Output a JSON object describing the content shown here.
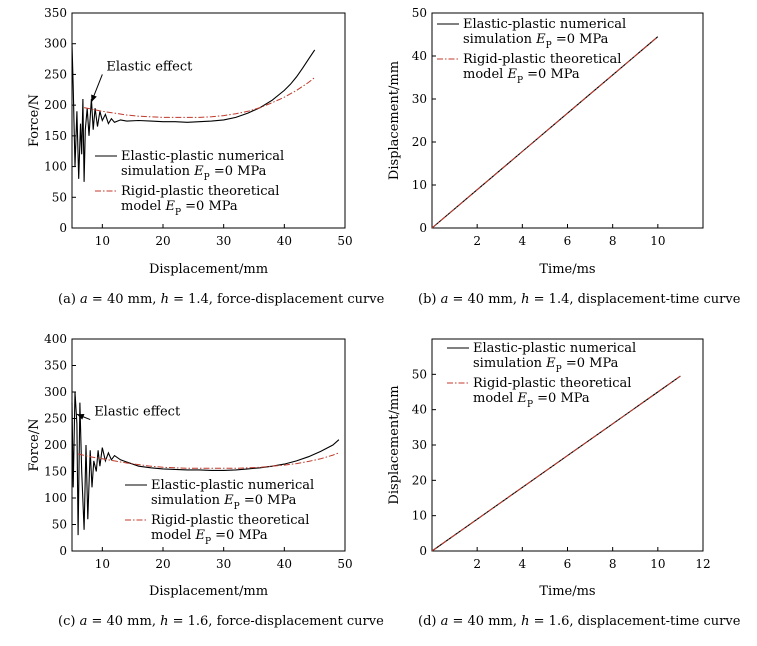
{
  "chart_data": [
    {
      "type": "line",
      "panel": "a",
      "caption_parts": [
        "(a) ",
        "a",
        " = 40 mm, ",
        "h",
        " = 1.4, force-displacement curve"
      ],
      "xlabel": "Displacement/mm",
      "ylabel": "Force/N",
      "xlim": [
        5,
        50
      ],
      "ylim": [
        0,
        350
      ],
      "xticks": [
        10,
        20,
        30,
        40,
        50
      ],
      "yticks": [
        0,
        50,
        100,
        150,
        200,
        250,
        300,
        350
      ],
      "annotation": {
        "text": "Elastic effect",
        "anchor": [
          8.2,
          205
        ],
        "text_at": [
          10,
          250
        ]
      },
      "legend": [
        {
          "line1": "Elastic-plastic numerical",
          "line2": "simulation ",
          "sym": "E",
          "sub": "P",
          "rest": " =0 MPa",
          "style": "solid"
        },
        {
          "line1": "Rigid-plastic theoretical",
          "line2": "model ",
          "sym": "E",
          "sub": "P",
          "rest": " =0 MPa",
          "style": "dashdot"
        }
      ],
      "series": [
        {
          "style": "solid",
          "color": "#000000",
          "x": [
            5,
            5.2,
            5.5,
            5.8,
            6.1,
            6.4,
            6.6,
            6.8,
            7.0,
            7.2,
            7.5,
            7.8,
            8.0,
            8.2,
            8.5,
            8.8,
            9.2,
            9.6,
            10.0,
            10.5,
            11,
            11.5,
            12,
            13,
            14,
            16,
            18,
            20,
            22,
            24,
            26,
            28,
            30,
            32,
            34,
            36,
            38,
            40,
            41,
            42,
            43,
            44,
            45
          ],
          "y": [
            300,
            230,
            100,
            190,
            80,
            170,
            120,
            210,
            75,
            160,
            195,
            150,
            180,
            210,
            160,
            195,
            165,
            190,
            175,
            185,
            170,
            178,
            172,
            176,
            174,
            175,
            174,
            173,
            173,
            172,
            173,
            174,
            176,
            180,
            187,
            196,
            208,
            224,
            234,
            246,
            260,
            275,
            290
          ]
        },
        {
          "style": "dashdot",
          "color": "#c0392b",
          "x": [
            7,
            8,
            10,
            12,
            14,
            16,
            18,
            20,
            22,
            24,
            26,
            28,
            30,
            32,
            34,
            36,
            38,
            40,
            42,
            44,
            45
          ],
          "y": [
            196,
            194,
            190,
            187,
            184,
            182,
            181,
            180,
            180,
            180,
            180,
            181,
            183,
            186,
            190,
            196,
            204,
            213,
            224,
            237,
            245
          ]
        }
      ]
    },
    {
      "type": "line",
      "panel": "b",
      "caption_parts": [
        "(b) ",
        "a",
        " = 40 mm, ",
        "h",
        " = 1.4, displacement-time curve"
      ],
      "xlabel": "Time/ms",
      "ylabel": "Displacement/mm",
      "xlim": [
        0,
        12
      ],
      "ylim": [
        0,
        50
      ],
      "xticks": [
        2,
        4,
        6,
        8,
        10
      ],
      "yticks": [
        0,
        10,
        20,
        30,
        40,
        50
      ],
      "legend": [
        {
          "line1": "Elastic-plastic numerical",
          "line2": "simulation ",
          "sym": "E",
          "sub": "P",
          "rest": " =0 MPa",
          "style": "solid"
        },
        {
          "line1": "Rigid-plastic theoretical",
          "line2": "model ",
          "sym": "E",
          "sub": "P",
          "rest": " =0 MPa",
          "style": "dashdot"
        }
      ],
      "series": [
        {
          "style": "solid",
          "color": "#000000",
          "x": [
            0,
            2,
            4,
            6,
            8,
            10
          ],
          "y": [
            0,
            8.9,
            17.8,
            26.7,
            35.6,
            44.5
          ]
        },
        {
          "style": "dashdot",
          "color": "#c0392b",
          "x": [
            0,
            2,
            4,
            6,
            8,
            10
          ],
          "y": [
            0,
            8.9,
            17.8,
            26.7,
            35.6,
            44.5
          ]
        }
      ]
    },
    {
      "type": "line",
      "panel": "c",
      "caption_parts": [
        "(c) ",
        "a",
        " = 40 mm, ",
        "h",
        " = 1.6, force-displacement curve"
      ],
      "xlabel": "Displacement/mm",
      "ylabel": "Force/N",
      "xlim": [
        5,
        50
      ],
      "ylim": [
        0,
        400
      ],
      "xticks": [
        10,
        20,
        30,
        40,
        50
      ],
      "yticks": [
        0,
        50,
        100,
        150,
        200,
        250,
        300,
        350,
        400
      ],
      "annotation": {
        "text": "Elastic effect",
        "anchor": [
          5.8,
          258
        ],
        "text_at": [
          8,
          248
        ]
      },
      "legend": [
        {
          "line1": "Elastic-plastic numerical",
          "line2": "simulation ",
          "sym": "E",
          "sub": "P",
          "rest": " =0 MPa",
          "style": "solid"
        },
        {
          "line1": "Rigid-plastic theoretical",
          "line2": "model ",
          "sym": "E",
          "sub": "P",
          "rest": " =0 MPa",
          "style": "dashdot"
        }
      ],
      "series": [
        {
          "style": "solid",
          "color": "#000000",
          "x": [
            5,
            5.2,
            5.5,
            5.8,
            6.0,
            6.3,
            6.6,
            7.0,
            7.3,
            7.6,
            8.0,
            8.3,
            8.6,
            9.0,
            9.3,
            9.6,
            10.0,
            10.5,
            11,
            11.5,
            12,
            13,
            14,
            16,
            18,
            20,
            22,
            24,
            26,
            28,
            30,
            32,
            34,
            36,
            38,
            40,
            42,
            44,
            46,
            48,
            49
          ],
          "y": [
            280,
            120,
            300,
            240,
            30,
            280,
            150,
            40,
            200,
            60,
            190,
            120,
            170,
            150,
            190,
            160,
            195,
            170,
            185,
            172,
            180,
            172,
            168,
            160,
            157,
            155,
            154,
            153,
            153,
            152,
            152,
            153,
            155,
            157,
            160,
            164,
            170,
            178,
            188,
            200,
            210
          ]
        },
        {
          "style": "dashdot",
          "color": "#c0392b",
          "x": [
            6,
            8,
            10,
            12,
            14,
            16,
            18,
            20,
            22,
            24,
            26,
            28,
            30,
            32,
            34,
            36,
            38,
            40,
            42,
            44,
            46,
            48,
            49
          ],
          "y": [
            183,
            178,
            174,
            170,
            166,
            163,
            160,
            158,
            157,
            156,
            156,
            156,
            156,
            156,
            157,
            158,
            160,
            162,
            165,
            169,
            174,
            181,
            185
          ]
        }
      ]
    },
    {
      "type": "line",
      "panel": "d",
      "caption_parts": [
        "(d) ",
        "a",
        " = 40 mm, ",
        "h",
        " = 1.6, displacement-time curve"
      ],
      "xlabel": "Time/ms",
      "ylabel": "Displacement/mm",
      "xlim": [
        0,
        12
      ],
      "ylim": [
        0,
        60
      ],
      "xticks": [
        2,
        4,
        6,
        8,
        10,
        12
      ],
      "yticks": [
        0,
        10,
        20,
        30,
        40,
        50
      ],
      "legend": [
        {
          "line1": "Elastic-plastic numerical",
          "line2": "simulation ",
          "sym": "E",
          "sub": "P",
          "rest": " =0 MPa",
          "style": "solid"
        },
        {
          "line1": "Rigid-plastic theoretical",
          "line2": "model ",
          "sym": "E",
          "sub": "P",
          "rest": " =0 MPa",
          "style": "dashdot"
        }
      ],
      "series": [
        {
          "style": "solid",
          "color": "#000000",
          "x": [
            0,
            2,
            4,
            6,
            8,
            10,
            11
          ],
          "y": [
            0,
            9.0,
            18.0,
            27.0,
            36.0,
            45.0,
            49.5
          ]
        },
        {
          "style": "dashdot",
          "color": "#c0392b",
          "x": [
            0,
            2,
            4,
            6,
            8,
            10,
            11
          ],
          "y": [
            0,
            9.0,
            18.0,
            27.0,
            36.0,
            45.0,
            49.5
          ]
        }
      ]
    }
  ]
}
